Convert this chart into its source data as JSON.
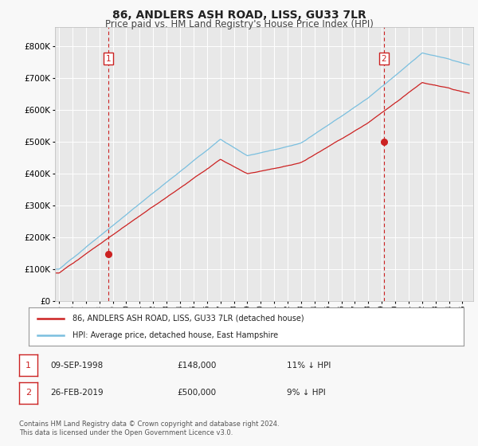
{
  "title": "86, ANDLERS ASH ROAD, LISS, GU33 7LR",
  "subtitle": "Price paid vs. HM Land Registry's House Price Index (HPI)",
  "ytick_values": [
    0,
    100000,
    200000,
    300000,
    400000,
    500000,
    600000,
    700000,
    800000
  ],
  "ylim": [
    0,
    860000
  ],
  "xlim_start": 1994.7,
  "xlim_end": 2025.8,
  "background_color": "#f8f8f8",
  "plot_bg_color": "#e8e8e8",
  "grid_color": "#ffffff",
  "hpi_color": "#7abfdf",
  "price_color": "#cc2222",
  "vline_color": "#cc2222",
  "sale1_x": 1998.69,
  "sale1_y": 148000,
  "sale1_label": "1",
  "sale2_x": 2019.15,
  "sale2_y": 500000,
  "sale2_label": "2",
  "legend_line1": "86, ANDLERS ASH ROAD, LISS, GU33 7LR (detached house)",
  "legend_line2": "HPI: Average price, detached house, East Hampshire",
  "table_row1": [
    "1",
    "09-SEP-1998",
    "£148,000",
    "11% ↓ HPI"
  ],
  "table_row2": [
    "2",
    "26-FEB-2019",
    "£500,000",
    "9% ↓ HPI"
  ],
  "footnote": "Contains HM Land Registry data © Crown copyright and database right 2024.\nThis data is licensed under the Open Government Licence v3.0.",
  "xtick_years": [
    1995,
    1996,
    1997,
    1998,
    1999,
    2000,
    2001,
    2002,
    2003,
    2004,
    2005,
    2006,
    2007,
    2008,
    2009,
    2010,
    2011,
    2012,
    2013,
    2014,
    2015,
    2016,
    2017,
    2018,
    2019,
    2020,
    2021,
    2022,
    2023,
    2024,
    2025
  ]
}
